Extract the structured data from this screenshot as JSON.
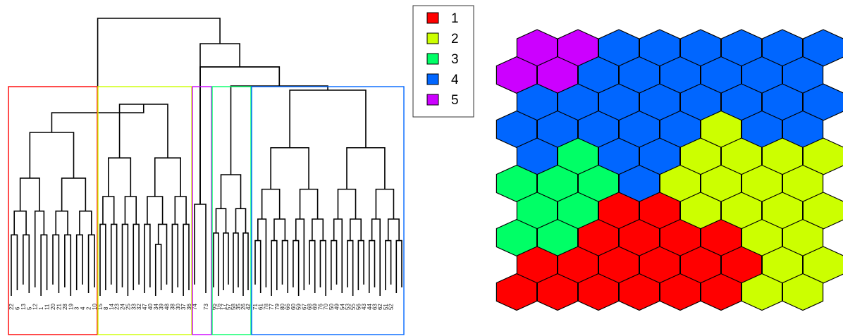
{
  "legend": {
    "entries": [
      {
        "label": "1",
        "color": "#ff0000"
      },
      {
        "label": "2",
        "color": "#ccff00"
      },
      {
        "label": "3",
        "color": "#00ff66"
      },
      {
        "label": "4",
        "color": "#0066ff"
      },
      {
        "label": "5",
        "color": "#cc00ff"
      }
    ]
  },
  "dendrogram": {
    "clusters": [
      {
        "id": "1",
        "color": "#ff0000"
      },
      {
        "id": "2",
        "color": "#ccff00"
      },
      {
        "id": "5",
        "color": "#cc00ff"
      },
      {
        "id": "3",
        "color": "#00ff66"
      },
      {
        "id": "4",
        "color": "#0066ff"
      }
    ],
    "leaf_labels": [
      "22",
      "6",
      "13",
      "5",
      "12",
      "1",
      "11",
      "20",
      "21",
      "28",
      "19",
      "3",
      "4",
      "2",
      "10",
      "15",
      "8",
      "14",
      "23",
      "24",
      "25",
      "33",
      "32",
      "47",
      "40",
      "34",
      "39",
      "48",
      "38",
      "30",
      "37",
      "36",
      "74",
      "73",
      "65",
      "16",
      "17",
      "57",
      "58",
      "35",
      "26",
      "42",
      "71",
      "61",
      "78",
      "77",
      "79",
      "80",
      "66",
      "60",
      "59",
      "67",
      "68",
      "69",
      "76",
      "70",
      "50",
      "49",
      "54",
      "53",
      "55",
      "56",
      "43",
      "44",
      "63",
      "62",
      "51",
      "52"
    ]
  },
  "som_grid": {
    "rows": [
      [
        5,
        5,
        4,
        4,
        4,
        4,
        4,
        4
      ],
      [
        5,
        5,
        4,
        4,
        4,
        4,
        4,
        4
      ],
      [
        4,
        4,
        4,
        4,
        4,
        4,
        4,
        4
      ],
      [
        4,
        4,
        4,
        4,
        4,
        2,
        4,
        4
      ],
      [
        4,
        3,
        4,
        4,
        2,
        2,
        2,
        2
      ],
      [
        3,
        3,
        3,
        4,
        2,
        2,
        2,
        2
      ],
      [
        3,
        3,
        1,
        1,
        2,
        2,
        2,
        2
      ],
      [
        3,
        3,
        1,
        1,
        1,
        1,
        2,
        2
      ],
      [
        1,
        1,
        1,
        1,
        1,
        1,
        2,
        2
      ],
      [
        1,
        1,
        1,
        1,
        1,
        1,
        2,
        2
      ]
    ]
  }
}
